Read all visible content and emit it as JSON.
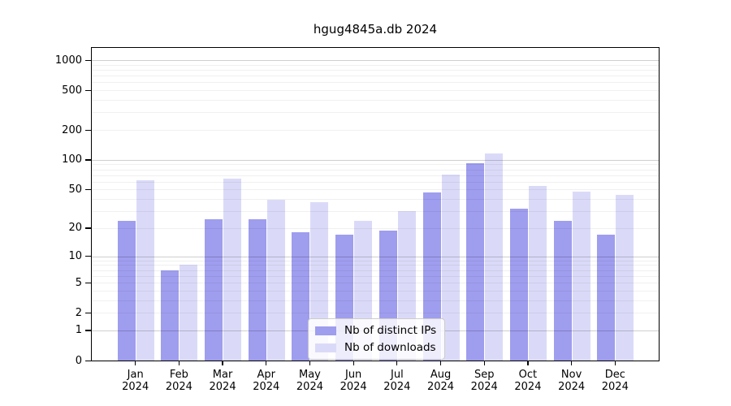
{
  "chart_data": {
    "type": "bar",
    "title": "hgug4845a.db 2024",
    "categories_months": [
      "Jan",
      "Feb",
      "Mar",
      "Apr",
      "May",
      "Jun",
      "Jul",
      "Aug",
      "Sep",
      "Oct",
      "Nov",
      "Dec"
    ],
    "year": "2024",
    "series": [
      {
        "name": "Nb of distinct IPs",
        "color": "#9f9dee",
        "values": [
          24,
          7,
          25,
          25,
          18,
          17,
          19,
          47,
          92,
          32,
          24,
          17
        ]
      },
      {
        "name": "Nb of downloads",
        "color": "#dadaf8",
        "values": [
          62,
          8,
          64,
          39,
          37,
          24,
          30,
          71,
          115,
          54,
          48,
          44
        ]
      }
    ],
    "yticks": [
      0,
      1,
      2,
      5,
      10,
      20,
      50,
      100,
      200,
      500,
      1000
    ],
    "major_gridlines": [
      1,
      10,
      100,
      1000
    ],
    "minor_gridline_decades": [
      1,
      10,
      100
    ],
    "scale": "log10(1+x)",
    "ylim": [
      0,
      1325
    ],
    "xlabel": "",
    "ylabel": "",
    "grid": true,
    "legend_position": "bottom-center"
  }
}
